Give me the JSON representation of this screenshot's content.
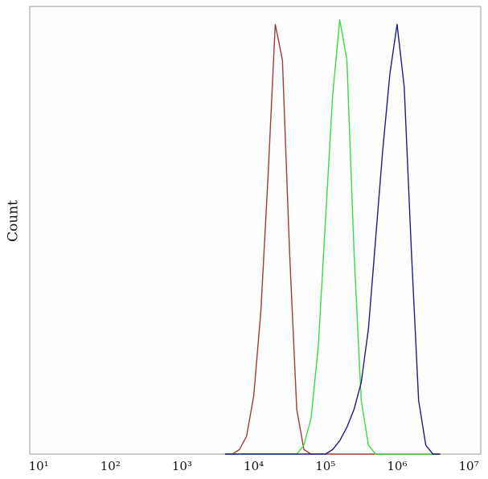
{
  "chart_data": {
    "type": "line",
    "y_label": "Count",
    "x": [
      3981,
      5012,
      6310,
      7943,
      10000,
      12589,
      15849,
      19953,
      25119,
      31623,
      39811,
      50119,
      63096,
      79433,
      100000,
      125893,
      158489,
      199526,
      251189,
      316228,
      398107,
      501187,
      630957,
      794328,
      1000000,
      1258925,
      1584893,
      1995262,
      2511886,
      3162278,
      3981072
    ],
    "series": [
      {
        "color": "#a53a3a",
        "values": [
          0,
          0,
          1,
          4,
          13,
          32,
          62,
          96,
          88,
          45,
          10,
          1,
          0,
          0,
          0,
          0,
          0,
          0,
          0,
          0,
          0,
          0,
          0,
          0,
          0,
          0,
          0,
          0,
          0,
          0,
          0
        ]
      },
      {
        "color": "#3ddc3d",
        "values": [
          0,
          0,
          0,
          0,
          0,
          0,
          0,
          0,
          0,
          0,
          0,
          2,
          8,
          24,
          52,
          80,
          97,
          88,
          45,
          12,
          2,
          0,
          0,
          0,
          0,
          0,
          0,
          0,
          0,
          0,
          0
        ]
      },
      {
        "color": "#1c1c8a",
        "values": [
          0,
          0,
          0,
          0,
          0,
          0,
          0,
          0,
          0,
          0,
          0,
          0,
          0,
          0,
          0,
          1,
          3,
          6,
          10,
          16,
          28,
          48,
          68,
          85,
          96,
          82,
          45,
          12,
          2,
          0,
          0
        ]
      }
    ],
    "log_x": true,
    "xlim": [
      7.5,
      14700000
    ],
    "ylim": [
      0,
      100
    ],
    "xticks": [
      {
        "value": 10,
        "label": "10¹"
      },
      {
        "value": 100,
        "label": "10²"
      },
      {
        "value": 1000,
        "label": "10³"
      },
      {
        "value": 10000,
        "label": "10⁴"
      },
      {
        "value": 100000,
        "label": "10⁵"
      },
      {
        "value": 1000000,
        "label": "10⁶"
      },
      {
        "value": 10000000,
        "label": "10⁷"
      }
    ]
  }
}
